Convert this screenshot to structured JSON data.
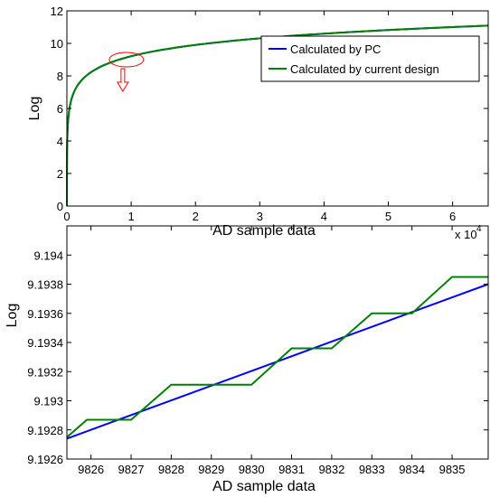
{
  "chart_data": [
    {
      "type": "line",
      "title": "",
      "xlabel": "AD sample data",
      "ylabel": "Log",
      "xlim": [
        0,
        65536
      ],
      "ylim": [
        0,
        12
      ],
      "x_ticks": [
        0,
        10000,
        20000,
        30000,
        40000,
        50000,
        60000
      ],
      "x_tick_labels": [
        "0",
        "1",
        "2",
        "3",
        "4",
        "5",
        "6"
      ],
      "x_multiplier": "x 10",
      "x_multiplier_exp": "4",
      "y_ticks": [
        0,
        2,
        4,
        6,
        8,
        10,
        12
      ],
      "y_tick_labels": [
        "0",
        "2",
        "4",
        "6",
        "8",
        "10",
        "12"
      ],
      "grid": false,
      "legend_position": "top-right",
      "series": [
        {
          "name": "Calculated by PC",
          "color": "#0000ff",
          "function": "ln(x)",
          "x_range": [
            1,
            65536
          ]
        },
        {
          "name": "Calculated by current design",
          "color": "#008000",
          "function": "ln(x)",
          "x_range": [
            1,
            65536
          ]
        }
      ],
      "annotations": [
        {
          "kind": "ellipse",
          "color": "#ff0000",
          "center": [
            8000,
            9.0
          ]
        },
        {
          "kind": "arrow-down",
          "color": "#ff0000",
          "x": 8000
        }
      ]
    },
    {
      "type": "line",
      "title": "",
      "xlabel": "AD sample data",
      "ylabel": "Log",
      "xlim": [
        9825.4,
        9835.9
      ],
      "ylim": [
        9.1926,
        9.1942
      ],
      "x_ticks": [
        9826,
        9827,
        9828,
        9829,
        9830,
        9831,
        9832,
        9833,
        9834,
        9835
      ],
      "x_tick_labels": [
        "9826",
        "9827",
        "9828",
        "9829",
        "9830",
        "9831",
        "9832",
        "9833",
        "9834",
        "9835"
      ],
      "y_ticks": [
        9.1926,
        9.1928,
        9.193,
        9.1932,
        9.1934,
        9.1936,
        9.1938,
        9.194
      ],
      "y_tick_labels": [
        "9.1926",
        "9.1928",
        "9.193",
        "9.1932",
        "9.1934",
        "9.1936",
        "9.1938",
        "9.194"
      ],
      "grid": false,
      "series": [
        {
          "name": "Calculated by PC",
          "color": "#0000ff",
          "x": [
            9825.4,
            9835.9
          ],
          "y": [
            9.19274,
            9.1938
          ]
        },
        {
          "name": "Calculated by current design",
          "color": "#008000",
          "x": [
            9825.4,
            9825.9,
            9827.0,
            9828.0,
            9830.0,
            9831.0,
            9832.0,
            9833.0,
            9834.0,
            9835.0,
            9835.9
          ],
          "y": [
            9.19275,
            9.19287,
            9.19287,
            9.19311,
            9.19311,
            9.19336,
            9.19336,
            9.1936,
            9.1936,
            9.19385,
            9.19385
          ]
        }
      ]
    }
  ]
}
